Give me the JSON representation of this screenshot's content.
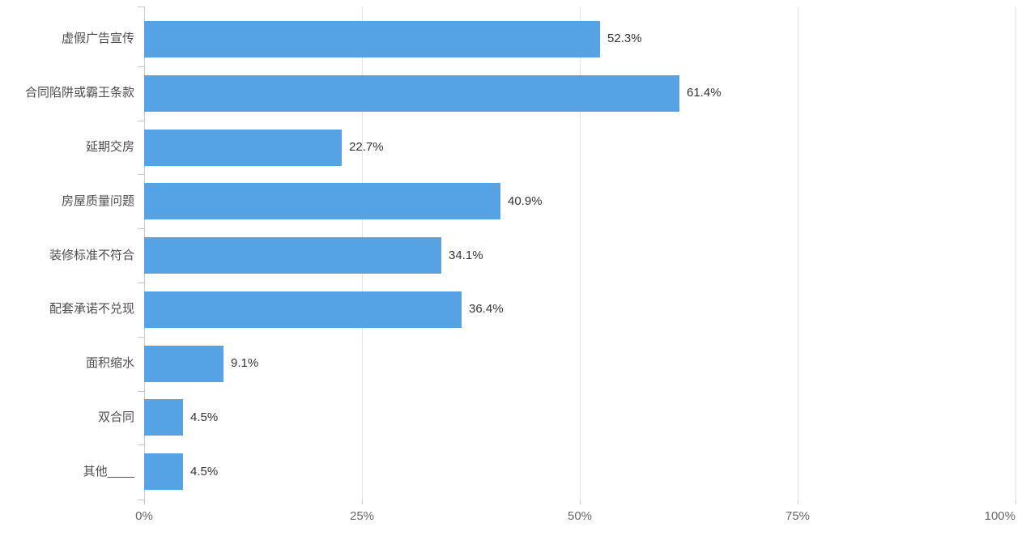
{
  "chart_data": {
    "type": "bar",
    "orientation": "horizontal",
    "title": "",
    "xlabel": "",
    "ylabel": "",
    "categories": [
      "虚假广告宣传",
      "合同陷阱或霸王条款",
      "延期交房",
      "房屋质量问题",
      "装修标准不符合",
      "配套承诺不兑现",
      "面积缩水",
      "双合同",
      "其他____"
    ],
    "values": [
      52.3,
      61.4,
      22.7,
      40.9,
      34.1,
      36.4,
      9.1,
      4.5,
      4.5
    ],
    "value_labels": [
      "52.3%",
      "61.4%",
      "22.7%",
      "40.9%",
      "34.1%",
      "36.4%",
      "9.1%",
      "4.5%",
      "4.5%"
    ],
    "x_ticks": {
      "values": [
        0,
        25,
        50,
        75,
        100
      ],
      "labels": [
        "0%",
        "25%",
        "50%",
        "75%",
        "100%"
      ]
    },
    "xlim": [
      0,
      100
    ],
    "grid": true,
    "legend": false,
    "bar_color": "#55a2e5"
  },
  "colors": {
    "background": "#ffffff",
    "bar": "#55a2e5",
    "gridline": "#e4e4e4",
    "axis": "#c9c9c9",
    "category_text": "#4d4d4d",
    "value_text": "#333333",
    "tick_text": "#666666"
  }
}
